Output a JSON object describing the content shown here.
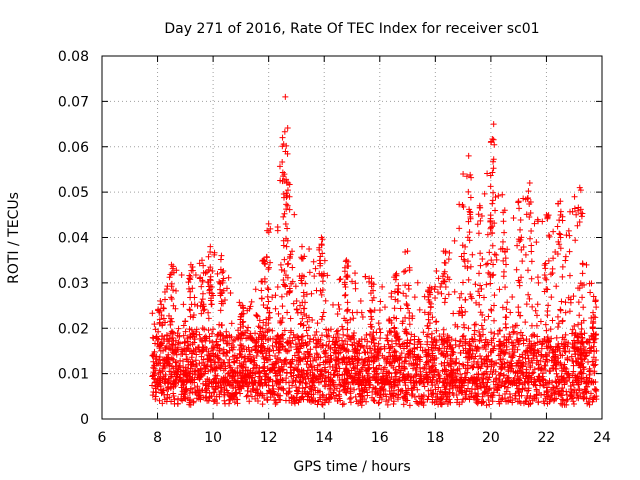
{
  "chart_data": {
    "type": "scatter",
    "title": "Day 271 of 2016, Rate Of TEC Index for receiver sc01",
    "xlabel": "GPS time / hours",
    "ylabel": "ROTI / TECUs",
    "xlim": [
      6,
      24
    ],
    "ylim": [
      0,
      0.08
    ],
    "x_ticks": [
      "6",
      "8",
      "10",
      "12",
      "14",
      "16",
      "18",
      "20",
      "22",
      "24"
    ],
    "y_ticks": [
      "0",
      "0.01",
      "0.02",
      "0.03",
      "0.04",
      "0.05",
      "0.06",
      "0.07",
      "0.08"
    ],
    "grid": true,
    "marker": "+",
    "series": [
      {
        "name": "ROTI",
        "color": "#ff0000",
        "x_range": [
          7.8,
          23.8
        ],
        "typical_band": [
          0.005,
          0.02
        ],
        "peaks": [
          {
            "x": 8.1,
            "y": 0.026
          },
          {
            "x": 8.5,
            "y": 0.034
          },
          {
            "x": 9.2,
            "y": 0.034
          },
          {
            "x": 9.6,
            "y": 0.035
          },
          {
            "x": 9.9,
            "y": 0.038
          },
          {
            "x": 10.3,
            "y": 0.036
          },
          {
            "x": 11.0,
            "y": 0.025
          },
          {
            "x": 11.8,
            "y": 0.035
          },
          {
            "x": 12.0,
            "y": 0.043
          },
          {
            "x": 12.5,
            "y": 0.062
          },
          {
            "x": 12.6,
            "y": 0.071
          },
          {
            "x": 12.7,
            "y": 0.052
          },
          {
            "x": 13.2,
            "y": 0.038
          },
          {
            "x": 13.9,
            "y": 0.04
          },
          {
            "x": 14.8,
            "y": 0.035
          },
          {
            "x": 15.7,
            "y": 0.031
          },
          {
            "x": 16.6,
            "y": 0.032
          },
          {
            "x": 17.0,
            "y": 0.037
          },
          {
            "x": 17.8,
            "y": 0.029
          },
          {
            "x": 18.3,
            "y": 0.037
          },
          {
            "x": 19.0,
            "y": 0.054
          },
          {
            "x": 19.2,
            "y": 0.058
          },
          {
            "x": 19.6,
            "y": 0.047
          },
          {
            "x": 20.0,
            "y": 0.061
          },
          {
            "x": 20.1,
            "y": 0.065
          },
          {
            "x": 20.5,
            "y": 0.046
          },
          {
            "x": 21.0,
            "y": 0.048
          },
          {
            "x": 21.4,
            "y": 0.052
          },
          {
            "x": 22.0,
            "y": 0.045
          },
          {
            "x": 22.5,
            "y": 0.048
          },
          {
            "x": 23.2,
            "y": 0.051
          },
          {
            "x": 23.7,
            "y": 0.027
          }
        ]
      }
    ]
  }
}
